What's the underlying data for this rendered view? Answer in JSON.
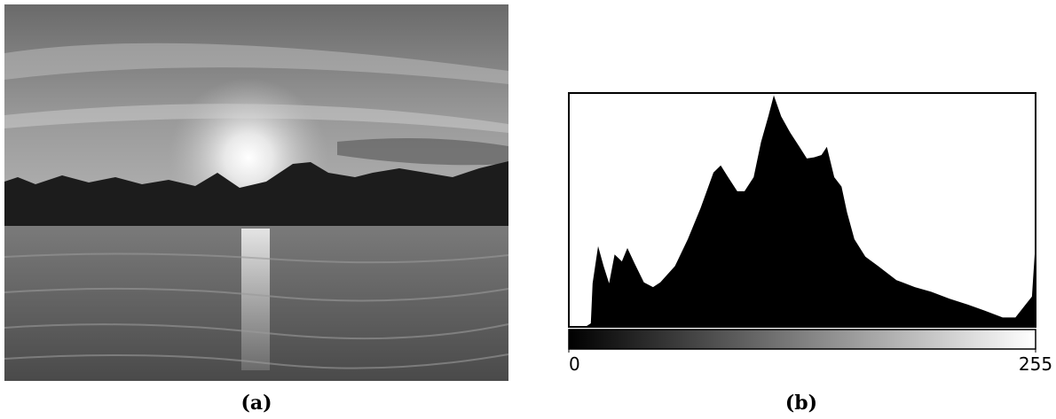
{
  "photo": {
    "caption": "(a)"
  },
  "chart_data": {
    "type": "area",
    "caption": "(b)",
    "color": "#000000",
    "xlim": [
      0,
      255
    ],
    "xticks": [
      0,
      255
    ],
    "ylim": [
      0,
      100
    ],
    "x": [
      0,
      9,
      12,
      13,
      16,
      19,
      22,
      25,
      29,
      32,
      36,
      41,
      46,
      50,
      58,
      65,
      72,
      79,
      83,
      87,
      92,
      96,
      101,
      105,
      109,
      112,
      116,
      121,
      126,
      130,
      134,
      138,
      141,
      145,
      149,
      152,
      156,
      162,
      169,
      179,
      189,
      198,
      208,
      218,
      227,
      237,
      244,
      249,
      253,
      255,
      255
    ],
    "values": [
      0,
      0,
      1.5,
      18.6,
      34.5,
      26,
      18.6,
      31,
      28,
      33.7,
      27,
      19,
      17,
      19,
      26,
      37.5,
      50.8,
      66,
      69,
      64,
      58,
      58,
      64,
      79,
      90,
      99,
      90,
      83,
      77,
      72,
      72.5,
      73.5,
      77,
      64,
      60,
      49,
      37.5,
      30,
      26,
      20,
      17,
      15,
      12,
      9.5,
      7,
      4,
      4,
      9,
      13,
      37,
      0
    ]
  }
}
